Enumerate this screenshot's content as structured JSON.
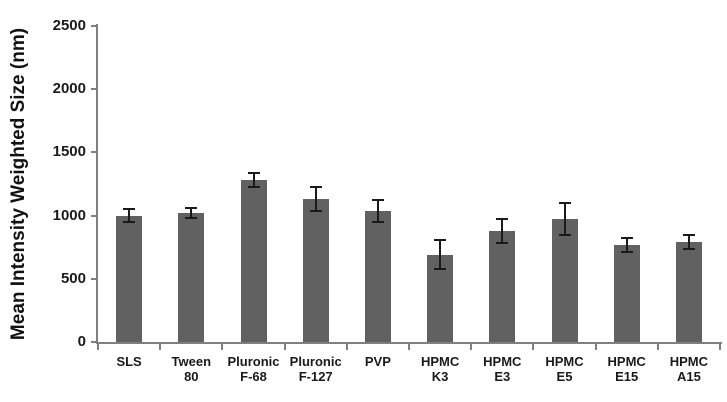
{
  "figure": {
    "background": "#ffffff"
  },
  "chart_data": {
    "type": "bar",
    "title": "",
    "xlabel": "",
    "ylabel": "Mean Intensity Weighted Size (nm)",
    "ylim": [
      0,
      2500
    ],
    "yticks": [
      0,
      500,
      1000,
      1500,
      2000,
      2500
    ],
    "grid": false,
    "legend": false,
    "bar_color": "#616161",
    "error_bar_color": "#1a1a1a",
    "axis_color": "#7f7f7f",
    "tick_label_color": "#1a1a1a",
    "categories": [
      "SLS",
      "Tween 80",
      "Pluronic F-68",
      "Pluronic F-127",
      "PVP",
      "HPMC K3",
      "HPMC E3",
      "HPMC E5",
      "HPMC E15",
      "HPMC A15"
    ],
    "category_label_lines": [
      [
        "SLS"
      ],
      [
        "Tween",
        "80"
      ],
      [
        "Pluronic",
        "F-68"
      ],
      [
        "Pluronic",
        "F-127"
      ],
      [
        "PVP"
      ],
      [
        "HPMC",
        "K3"
      ],
      [
        "HPMC",
        "E3"
      ],
      [
        "HPMC",
        "E5"
      ],
      [
        "HPMC",
        "E15"
      ],
      [
        "HPMC",
        "A15"
      ]
    ],
    "series": [
      {
        "name": "Mean intensity weighted size (nm)",
        "values": [
          1000,
          1020,
          1280,
          1135,
          1035,
          690,
          880,
          975,
          770,
          790
        ],
        "errors": [
          50,
          40,
          55,
          95,
          85,
          115,
          95,
          125,
          55,
          55
        ]
      }
    ]
  }
}
